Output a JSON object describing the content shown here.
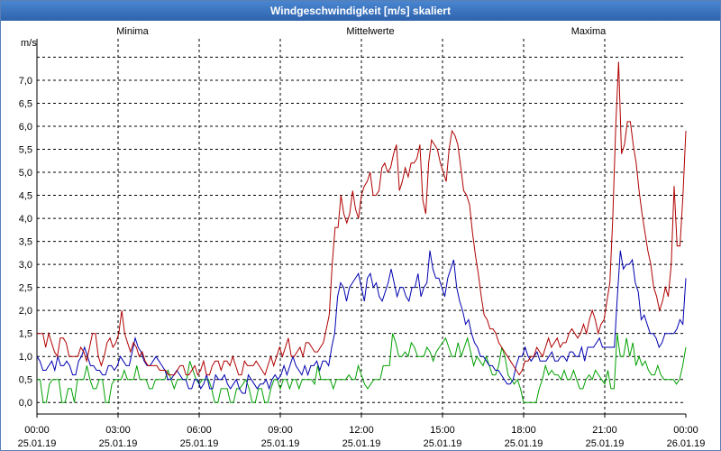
{
  "window": {
    "title": "Windgeschwindigkeit [m/s] skaliert"
  },
  "chart_data": {
    "type": "line",
    "title": "Windgeschwindigkeit [m/s] skaliert",
    "ylabel": "m/s",
    "ylim": [
      -0.25,
      7.9
    ],
    "y_ticks": [
      "0,0",
      "0,5",
      "1,0",
      "1,5",
      "2,0",
      "2,5",
      "3,0",
      "3,5",
      "4,0",
      "4,5",
      "5,0",
      "5,5",
      "6,0",
      "6,5",
      "7,0"
    ],
    "x_ticks": [
      {
        "time": "00:00",
        "date": "25.01.19"
      },
      {
        "time": "03:00",
        "date": "25.01.19"
      },
      {
        "time": "06:00",
        "date": "25.01.19"
      },
      {
        "time": "09:00",
        "date": "25.01.19"
      },
      {
        "time": "12:00",
        "date": "25.01.19"
      },
      {
        "time": "15:00",
        "date": "25.01.19"
      },
      {
        "time": "18:00",
        "date": "25.01.19"
      },
      {
        "time": "21:00",
        "date": "25.01.19"
      },
      {
        "time": "00:00",
        "date": "26.01.19"
      }
    ],
    "x_range_hours": [
      0,
      24
    ],
    "grid": true,
    "series": [
      {
        "name": "Minima",
        "color": "#00a000",
        "key": "min",
        "values": [
          0.5,
          0.5,
          0.0,
          0.0,
          0.4,
          0.5,
          0.5,
          0.5,
          0.0,
          0.0,
          0.3,
          0.3,
          0.0,
          0.5,
          0.5,
          0.5,
          0.8,
          0.5,
          0.3,
          0.3,
          0.5,
          0.5,
          0.0,
          0.0,
          0.4,
          0.5,
          0.5,
          0.5,
          0.7,
          0.5,
          0.5,
          0.5,
          0.8,
          0.5,
          0.5,
          0.5,
          0.3,
          0.3,
          0.5,
          0.5,
          0.5,
          0.5,
          0.7,
          0.5,
          0.3,
          0.5,
          0.5,
          0.5,
          0.5,
          0.9,
          0.7,
          0.5,
          0.4,
          0.5,
          0.5,
          0.5,
          0.3,
          0.0,
          0.0,
          0.3,
          0.3,
          0.3,
          0.0,
          0.0,
          0.3,
          0.3,
          0.4,
          0.5,
          0.3,
          0.0,
          0.0,
          0.3,
          0.3,
          0.0,
          0.0,
          0.3,
          0.5,
          0.5,
          0.3,
          0.5,
          0.5,
          0.3,
          0.5,
          0.5,
          0.3,
          0.5,
          0.5,
          0.5,
          0.5,
          0.4,
          0.8,
          0.5,
          0.5,
          0.5,
          0.5,
          0.3,
          0.5,
          0.5,
          0.5,
          0.5,
          0.6,
          0.5,
          0.5,
          0.8,
          0.6,
          0.4,
          0.3,
          0.4,
          0.5,
          0.5,
          0.5,
          0.8,
          0.8,
          0.8,
          1.5,
          1.3,
          1.0,
          1.0,
          1.1,
          1.0,
          1.3,
          1.2,
          1.0,
          1.0,
          1.0,
          1.2,
          1.1,
          0.9,
          1.1,
          1.2,
          1.3,
          1.4,
          1.2,
          1.0,
          1.0,
          1.3,
          1.0,
          1.2,
          1.4,
          1.1,
          0.8,
          1.0,
          0.9,
          0.8,
          1.0,
          0.8,
          0.6,
          0.6,
          0.8,
          1.2,
          1.0,
          0.6,
          0.5,
          0.4,
          0.5,
          0.3,
          0.0,
          0.0,
          0.0,
          0.0,
          0.0,
          0.3,
          0.5,
          0.8,
          0.6,
          0.7,
          0.6,
          0.6,
          0.5,
          0.7,
          0.5,
          0.5,
          0.7,
          0.5,
          0.3,
          0.3,
          0.5,
          0.6,
          0.5,
          0.7,
          0.6,
          0.5,
          0.4,
          0.7,
          0.3,
          0.3,
          1.5,
          1.0,
          1.0,
          1.4,
          1.0,
          1.3,
          0.8,
          1.0,
          0.8,
          0.9,
          0.7,
          0.6,
          0.6,
          0.8,
          0.6,
          0.5,
          0.5,
          0.5,
          0.5,
          0.4,
          0.5,
          0.8,
          1.2
        ]
      },
      {
        "name": "Mittelwerte",
        "color": "#0000b0",
        "key": "avg",
        "values": [
          1.0,
          0.9,
          0.7,
          0.7,
          0.8,
          0.9,
          0.7,
          1.0,
          0.8,
          0.8,
          0.9,
          0.8,
          0.6,
          0.6,
          0.9,
          1.0,
          1.2,
          1.0,
          0.8,
          0.8,
          0.7,
          0.7,
          0.6,
          0.6,
          0.8,
          0.8,
          0.7,
          0.8,
          1.0,
          0.9,
          0.8,
          0.8,
          1.1,
          1.4,
          1.2,
          1.1,
          0.9,
          0.8,
          0.8,
          0.9,
          1.0,
          0.9,
          0.8,
          0.7,
          0.5,
          0.5,
          0.6,
          0.7,
          0.6,
          0.5,
          0.5,
          0.3,
          0.3,
          0.5,
          0.5,
          0.3,
          0.4,
          0.6,
          0.3,
          0.3,
          0.6,
          0.5,
          0.5,
          0.6,
          0.4,
          0.3,
          0.4,
          0.5,
          0.3,
          0.2,
          0.2,
          0.6,
          0.5,
          0.4,
          0.3,
          0.4,
          0.4,
          0.5,
          0.3,
          0.5,
          0.6,
          0.5,
          0.6,
          0.8,
          0.6,
          0.8,
          1.0,
          0.8,
          0.7,
          0.6,
          0.8,
          0.6,
          0.8,
          0.8,
          0.9,
          0.7,
          0.9,
          0.9,
          0.8,
          1.2,
          1.5,
          2.3,
          2.6,
          2.5,
          2.2,
          2.5,
          2.6,
          2.7,
          2.8,
          2.5,
          2.2,
          2.7,
          2.8,
          2.5,
          2.6,
          2.3,
          2.2,
          2.4,
          2.6,
          2.9,
          2.6,
          2.3,
          2.5,
          2.5,
          2.3,
          2.2,
          2.5,
          2.5,
          2.8,
          2.3,
          2.5,
          2.6,
          3.3,
          2.9,
          2.7,
          2.7,
          2.5,
          2.3,
          2.7,
          2.9,
          3.1,
          2.5,
          2.2,
          2.0,
          1.7,
          1.8,
          1.5,
          1.3,
          1.2,
          1.0,
          1.0,
          0.9,
          0.8,
          0.8,
          0.7,
          0.7,
          0.6,
          0.5,
          0.4,
          0.4,
          0.5,
          0.8,
          1.0,
          1.0,
          1.2,
          1.0,
          0.9,
          1.0,
          1.1,
          0.9,
          0.9,
          0.9,
          1.0,
          1.1,
          0.9,
          0.9,
          1.0,
          1.0,
          0.9,
          1.1,
          1.1,
          1.0,
          1.0,
          1.2,
          0.9,
          1.2,
          1.2,
          1.2,
          1.3,
          1.4,
          1.2,
          1.2,
          1.2,
          1.2,
          1.2,
          2.3,
          3.3,
          2.9,
          3.0,
          3.0,
          3.1,
          2.6,
          2.4,
          1.8,
          1.9,
          1.7,
          1.5,
          1.5,
          1.4,
          1.2,
          1.3,
          1.5,
          1.5,
          1.5,
          1.5,
          1.6,
          1.8,
          1.7,
          2.7
        ]
      },
      {
        "name": "Maxima",
        "color": "#b00000",
        "key": "max",
        "values": [
          1.5,
          1.5,
          1.5,
          1.2,
          1.5,
          1.3,
          1.1,
          1.0,
          1.4,
          1.4,
          1.3,
          1.0,
          1.0,
          1.0,
          1.0,
          1.2,
          1.1,
          0.9,
          1.2,
          1.5,
          1.5,
          1.0,
          0.8,
          1.0,
          1.3,
          1.4,
          1.2,
          1.3,
          1.5,
          2.0,
          1.5,
          1.3,
          1.1,
          1.3,
          1.2,
          1.0,
          1.1,
          0.9,
          0.8,
          0.8,
          0.8,
          0.8,
          0.7,
          0.7,
          0.7,
          0.6,
          0.6,
          0.6,
          0.7,
          0.8,
          0.8,
          0.6,
          0.6,
          0.7,
          0.8,
          0.6,
          0.7,
          0.9,
          0.6,
          0.6,
          0.8,
          0.9,
          0.9,
          0.7,
          0.9,
          0.9,
          0.8,
          1.0,
          0.8,
          0.6,
          0.6,
          0.9,
          0.8,
          0.8,
          0.8,
          0.9,
          0.8,
          0.7,
          0.6,
          0.8,
          1.0,
          0.8,
          1.0,
          1.2,
          1.0,
          1.2,
          1.4,
          1.0,
          1.0,
          1.1,
          1.2,
          1.0,
          1.3,
          1.3,
          1.2,
          1.1,
          1.1,
          1.2,
          1.3,
          1.6,
          1.9,
          3.0,
          3.8,
          3.8,
          4.5,
          4.1,
          3.9,
          4.1,
          4.6,
          4.2,
          4.0,
          4.5,
          4.7,
          4.8,
          5.0,
          4.5,
          4.5,
          4.6,
          5.1,
          5.2,
          5.0,
          5.1,
          5.4,
          5.6,
          4.6,
          4.8,
          5.1,
          4.9,
          5.2,
          5.2,
          5.3,
          5.6,
          4.4,
          4.1,
          5.2,
          5.7,
          5.6,
          5.5,
          5.2,
          5.0,
          4.8,
          5.5,
          5.9,
          5.8,
          5.6,
          5.1,
          4.6,
          4.5,
          4.3,
          3.7,
          3.2,
          2.8,
          2.3,
          1.9,
          1.8,
          1.6,
          1.6,
          1.5,
          1.3,
          1.2,
          1.1,
          1.0,
          0.9,
          0.8,
          0.7,
          0.6,
          0.7,
          0.9,
          0.9,
          1.0,
          1.0,
          1.2,
          1.1,
          1.0,
          1.2,
          1.4,
          1.2,
          1.3,
          1.4,
          1.2,
          1.3,
          1.3,
          1.5,
          1.6,
          1.5,
          1.4,
          1.5,
          1.7,
          1.5,
          1.8,
          2.0,
          1.8,
          1.5,
          1.7,
          1.8,
          2.2,
          2.6,
          4.0,
          6.0,
          7.4,
          5.4,
          5.6,
          6.1,
          6.1,
          5.6,
          5.2,
          4.6,
          4.1,
          3.7,
          3.3,
          3.0,
          2.5,
          2.3,
          2.0,
          2.2,
          2.5,
          2.3,
          3.0,
          4.7,
          3.4,
          3.4,
          4.5,
          5.9
        ]
      }
    ]
  }
}
